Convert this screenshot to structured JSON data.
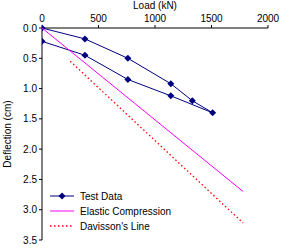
{
  "chart_data": {
    "type": "line",
    "x_label": "Load (kN)",
    "y_label": "Deflection (cm)",
    "xlim": [
      0,
      2000
    ],
    "xticks": [
      0,
      500,
      1000,
      1500,
      2000
    ],
    "ylim": [
      0,
      3.5
    ],
    "yticks": [
      {
        "value": 0,
        "label": "0.0"
      },
      {
        "value": 0.5,
        "label": "0.5"
      },
      {
        "value": 1,
        "label": "1.0"
      },
      {
        "value": 1.5,
        "label": "1.5"
      },
      {
        "value": 2,
        "label": "2.0"
      },
      {
        "value": 2.5,
        "label": "2.5"
      },
      {
        "value": 3,
        "label": "3.0"
      },
      {
        "value": 3.5,
        "label": "3.5"
      }
    ],
    "grid": false,
    "legend": "lower left",
    "series": [
      {
        "name": "Test Data",
        "color": "#000080",
        "marker": "diamond",
        "line_style": "solid",
        "x": [
          0,
          380,
          760,
          1140,
          1330,
          1510,
          1140,
          760,
          380,
          0
        ],
        "values": [
          0,
          0.18,
          0.5,
          0.92,
          1.2,
          1.4,
          1.12,
          0.85,
          0.45,
          0.22
        ]
      },
      {
        "name": "Elastic Compression",
        "color": "#ff00ff",
        "marker": "none",
        "line_style": "solid",
        "x": [
          0,
          1780
        ],
        "values": [
          0,
          2.7
        ]
      },
      {
        "name": "Davisson's Line",
        "color": "#ff0000",
        "marker": "none",
        "line_style": "dotted",
        "x": [
          250,
          1780
        ],
        "values": [
          0.55,
          3.22
        ]
      }
    ]
  }
}
